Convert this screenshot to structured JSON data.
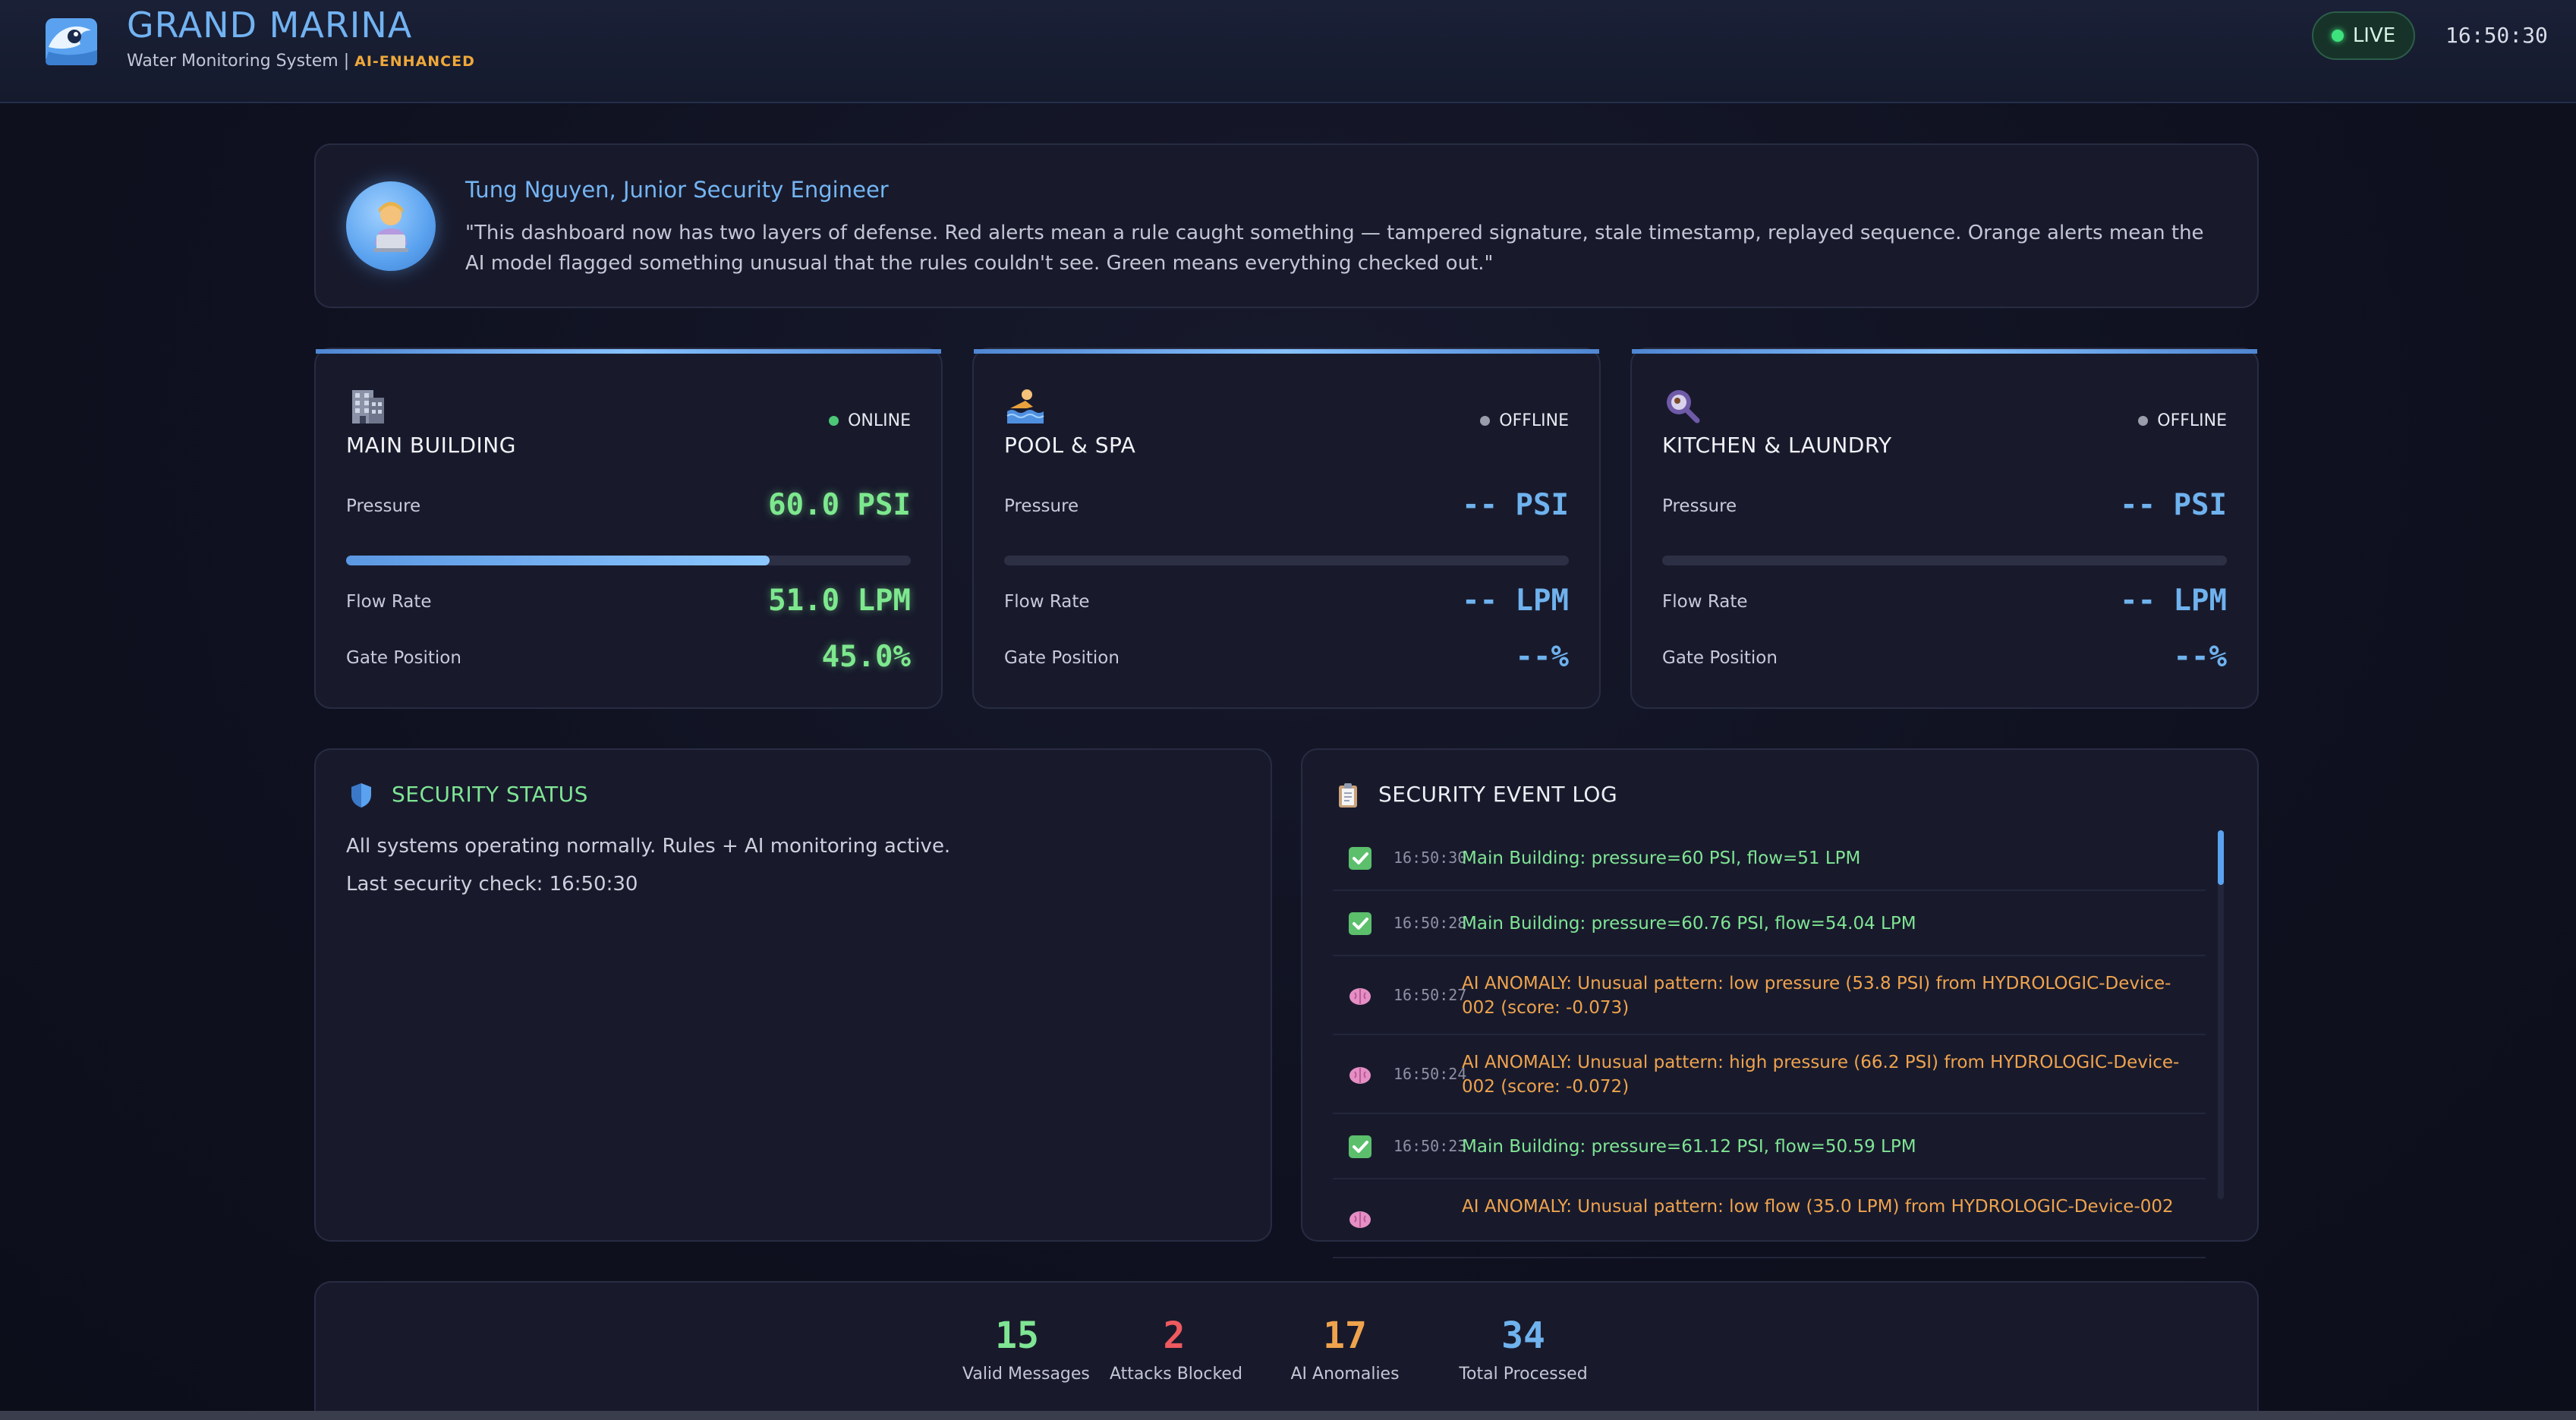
{
  "header": {
    "title": "GRAND MARINA",
    "subtitle": "Water Monitoring System |",
    "badge": "AI-ENHANCED",
    "live_label": "LIVE",
    "clock": "16:50:30"
  },
  "quote": {
    "name": "Tung Nguyen, Junior Security Engineer",
    "text": "\"This dashboard now has two layers of defense. Red alerts mean a rule caught something — tampered signature, stale timestamp, replayed sequence. Orange alerts mean the AI model flagged something unusual that the rules couldn't see. Green means everything checked out.\""
  },
  "devices": [
    {
      "icon": "building-icon",
      "name": "MAIN BUILDING",
      "status": "ONLINE",
      "status_color": "#4cc777",
      "pressure_label": "Pressure",
      "pressure": "60.0 PSI",
      "pressure_fraction": 0.75,
      "flow_label": "Flow Rate",
      "flow": "51.0 LPM",
      "gate_label": "Gate Position",
      "gate": "45.0%"
    },
    {
      "icon": "swimmer-icon",
      "name": "POOL & SPA",
      "status": "OFFLINE",
      "status_color": "#9a9dab",
      "pressure_label": "Pressure",
      "pressure": "-- PSI",
      "pressure_fraction": 0,
      "flow_label": "Flow Rate",
      "flow": "-- LPM",
      "gate_label": "Gate Position",
      "gate": "--%"
    },
    {
      "icon": "laundry-icon",
      "name": "KITCHEN & LAUNDRY",
      "status": "OFFLINE",
      "status_color": "#9a9dab",
      "pressure_label": "Pressure",
      "pressure": "-- PSI",
      "pressure_fraction": 0,
      "flow_label": "Flow Rate",
      "flow": "-- LPM",
      "gate_label": "Gate Position",
      "gate": "--%"
    }
  ],
  "security": {
    "title": "SECURITY STATUS",
    "message": "All systems operating normally. Rules + AI monitoring active.",
    "last_check": "Last security check: 16:50:30"
  },
  "log": {
    "title": "SECURITY EVENT LOG",
    "entries": [
      {
        "type": "ok",
        "time": "16:50:30",
        "message": "Main Building: pressure=60 PSI, flow=51 LPM"
      },
      {
        "type": "ok",
        "time": "16:50:28",
        "message": "Main Building: pressure=60.76 PSI, flow=54.04 LPM"
      },
      {
        "type": "ai",
        "time": "16:50:27",
        "message": "AI ANOMALY: Unusual pattern: low pressure (53.8 PSI) from HYDROLOGIC-Device-002 (score: -0.073)"
      },
      {
        "type": "ai",
        "time": "16:50:24",
        "message": "AI ANOMALY: Unusual pattern: high pressure (66.2 PSI) from HYDROLOGIC-Device-002 (score: -0.072)"
      },
      {
        "type": "ok",
        "time": "16:50:23",
        "message": "Main Building: pressure=61.12 PSI, flow=50.59 LPM"
      },
      {
        "type": "ai",
        "time": "",
        "message": "AI ANOMALY: Unusual pattern: low flow (35.0 LPM) from HYDROLOGIC-Device-002"
      }
    ]
  },
  "stats": [
    {
      "value": "15",
      "label": "Valid Messages",
      "color": "#7fe593"
    },
    {
      "value": "2",
      "label": "Attacks Blocked",
      "color": "#ee5a5f"
    },
    {
      "value": "17",
      "label": "AI Anomalies",
      "color": "#efa34d"
    },
    {
      "value": "34",
      "label": "Total Processed",
      "color": "#6fb2ee"
    }
  ]
}
